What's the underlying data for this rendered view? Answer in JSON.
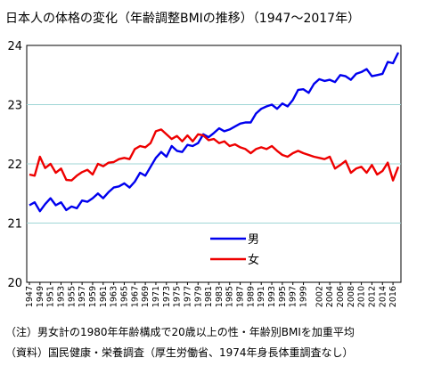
{
  "chart_data": {
    "type": "line",
    "title": "日本人の体格の変化（年齢調整BMIの推移）（1947～2017年）",
    "xlabel": "",
    "ylabel": "",
    "ylim": [
      20,
      24
    ],
    "yticks": [
      "20",
      "21",
      "22",
      "23",
      "24"
    ],
    "xticks": [
      "1947",
      "1949",
      "1951",
      "1953",
      "1955",
      "1957",
      "1959",
      "1961",
      "1963",
      "1965",
      "1967",
      "1969",
      "1971",
      "1973",
      "1975",
      "1977",
      "1979",
      "1981",
      "1983",
      "1985",
      "1987",
      "1989",
      "1991",
      "1993",
      "1995",
      "1997",
      "1999",
      "2002",
      "2004",
      "2006",
      "2008",
      "2010",
      "2012",
      "2014",
      "2016"
    ],
    "grid": true,
    "legend_position": "center-right",
    "series": [
      {
        "name": "男",
        "color": "#0000ee",
        "points": [
          [
            1947,
            21.3
          ],
          [
            1948,
            21.35
          ],
          [
            1949,
            21.2
          ],
          [
            1950,
            21.32
          ],
          [
            1951,
            21.42
          ],
          [
            1952,
            21.3
          ],
          [
            1953,
            21.35
          ],
          [
            1954,
            21.22
          ],
          [
            1955,
            21.28
          ],
          [
            1956,
            21.25
          ],
          [
            1957,
            21.38
          ],
          [
            1958,
            21.36
          ],
          [
            1959,
            21.42
          ],
          [
            1960,
            21.5
          ],
          [
            1961,
            21.42
          ],
          [
            1962,
            21.52
          ],
          [
            1963,
            21.6
          ],
          [
            1964,
            21.62
          ],
          [
            1965,
            21.67
          ],
          [
            1966,
            21.6
          ],
          [
            1967,
            21.7
          ],
          [
            1968,
            21.85
          ],
          [
            1969,
            21.8
          ],
          [
            1970,
            21.95
          ],
          [
            1971,
            22.1
          ],
          [
            1972,
            22.2
          ],
          [
            1973,
            22.12
          ],
          [
            1974,
            22.3
          ],
          [
            1975,
            22.22
          ],
          [
            1976,
            22.2
          ],
          [
            1977,
            22.32
          ],
          [
            1978,
            22.3
          ],
          [
            1979,
            22.35
          ],
          [
            1980,
            22.5
          ],
          [
            1981,
            22.45
          ],
          [
            1982,
            22.52
          ],
          [
            1983,
            22.6
          ],
          [
            1984,
            22.55
          ],
          [
            1985,
            22.58
          ],
          [
            1986,
            22.63
          ],
          [
            1987,
            22.68
          ],
          [
            1988,
            22.7
          ],
          [
            1989,
            22.7
          ],
          [
            1990,
            22.85
          ],
          [
            1991,
            22.93
          ],
          [
            1992,
            22.97
          ],
          [
            1993,
            23.0
          ],
          [
            1994,
            22.93
          ],
          [
            1995,
            23.02
          ],
          [
            1996,
            22.97
          ],
          [
            1997,
            23.08
          ],
          [
            1998,
            23.25
          ],
          [
            1999,
            23.26
          ],
          [
            2000,
            23.2
          ],
          [
            2001,
            23.35
          ],
          [
            2002,
            23.43
          ],
          [
            2003,
            23.4
          ],
          [
            2004,
            23.42
          ],
          [
            2005,
            23.38
          ],
          [
            2006,
            23.5
          ],
          [
            2007,
            23.48
          ],
          [
            2008,
            23.42
          ],
          [
            2009,
            23.52
          ],
          [
            2010,
            23.55
          ],
          [
            2011,
            23.6
          ],
          [
            2012,
            23.48
          ],
          [
            2013,
            23.5
          ],
          [
            2014,
            23.52
          ],
          [
            2015,
            23.72
          ],
          [
            2016,
            23.7
          ],
          [
            2017,
            23.88
          ]
        ]
      },
      {
        "name": "女",
        "color": "#ee0000",
        "points": [
          [
            1947,
            21.82
          ],
          [
            1948,
            21.8
          ],
          [
            1949,
            22.12
          ],
          [
            1950,
            21.93
          ],
          [
            1951,
            22.0
          ],
          [
            1952,
            21.85
          ],
          [
            1953,
            21.92
          ],
          [
            1954,
            21.73
          ],
          [
            1955,
            21.72
          ],
          [
            1956,
            21.8
          ],
          [
            1957,
            21.86
          ],
          [
            1958,
            21.9
          ],
          [
            1959,
            21.82
          ],
          [
            1960,
            22.0
          ],
          [
            1961,
            21.96
          ],
          [
            1962,
            22.02
          ],
          [
            1963,
            22.03
          ],
          [
            1964,
            22.08
          ],
          [
            1965,
            22.1
          ],
          [
            1966,
            22.08
          ],
          [
            1967,
            22.25
          ],
          [
            1968,
            22.3
          ],
          [
            1969,
            22.28
          ],
          [
            1970,
            22.35
          ],
          [
            1971,
            22.55
          ],
          [
            1972,
            22.58
          ],
          [
            1973,
            22.5
          ],
          [
            1974,
            22.42
          ],
          [
            1975,
            22.47
          ],
          [
            1976,
            22.38
          ],
          [
            1977,
            22.48
          ],
          [
            1978,
            22.38
          ],
          [
            1979,
            22.5
          ],
          [
            1980,
            22.48
          ],
          [
            1981,
            22.4
          ],
          [
            1982,
            22.42
          ],
          [
            1983,
            22.35
          ],
          [
            1984,
            22.38
          ],
          [
            1985,
            22.3
          ],
          [
            1986,
            22.33
          ],
          [
            1987,
            22.28
          ],
          [
            1988,
            22.25
          ],
          [
            1989,
            22.18
          ],
          [
            1990,
            22.25
          ],
          [
            1991,
            22.28
          ],
          [
            1992,
            22.25
          ],
          [
            1993,
            22.3
          ],
          [
            1994,
            22.22
          ],
          [
            1995,
            22.15
          ],
          [
            1996,
            22.12
          ],
          [
            1997,
            22.18
          ],
          [
            1998,
            22.22
          ],
          [
            1999,
            22.18
          ],
          [
            2000,
            22.15
          ],
          [
            2001,
            22.12
          ],
          [
            2002,
            22.1
          ],
          [
            2003,
            22.08
          ],
          [
            2004,
            22.12
          ],
          [
            2005,
            21.92
          ],
          [
            2006,
            21.98
          ],
          [
            2007,
            22.05
          ],
          [
            2008,
            21.85
          ],
          [
            2009,
            21.92
          ],
          [
            2010,
            21.95
          ],
          [
            2011,
            21.85
          ],
          [
            2012,
            21.98
          ],
          [
            2013,
            21.82
          ],
          [
            2014,
            21.88
          ],
          [
            2015,
            22.02
          ],
          [
            2016,
            21.72
          ],
          [
            2017,
            21.95
          ]
        ]
      }
    ]
  },
  "notes": {
    "note": "（注）男女計の1980年年齢構成で20歳以上の性・年齢別BMIを加重平均",
    "source": "（資料）国民健康・栄養調査（厚生労働省、1974年身長体重調査なし）"
  }
}
